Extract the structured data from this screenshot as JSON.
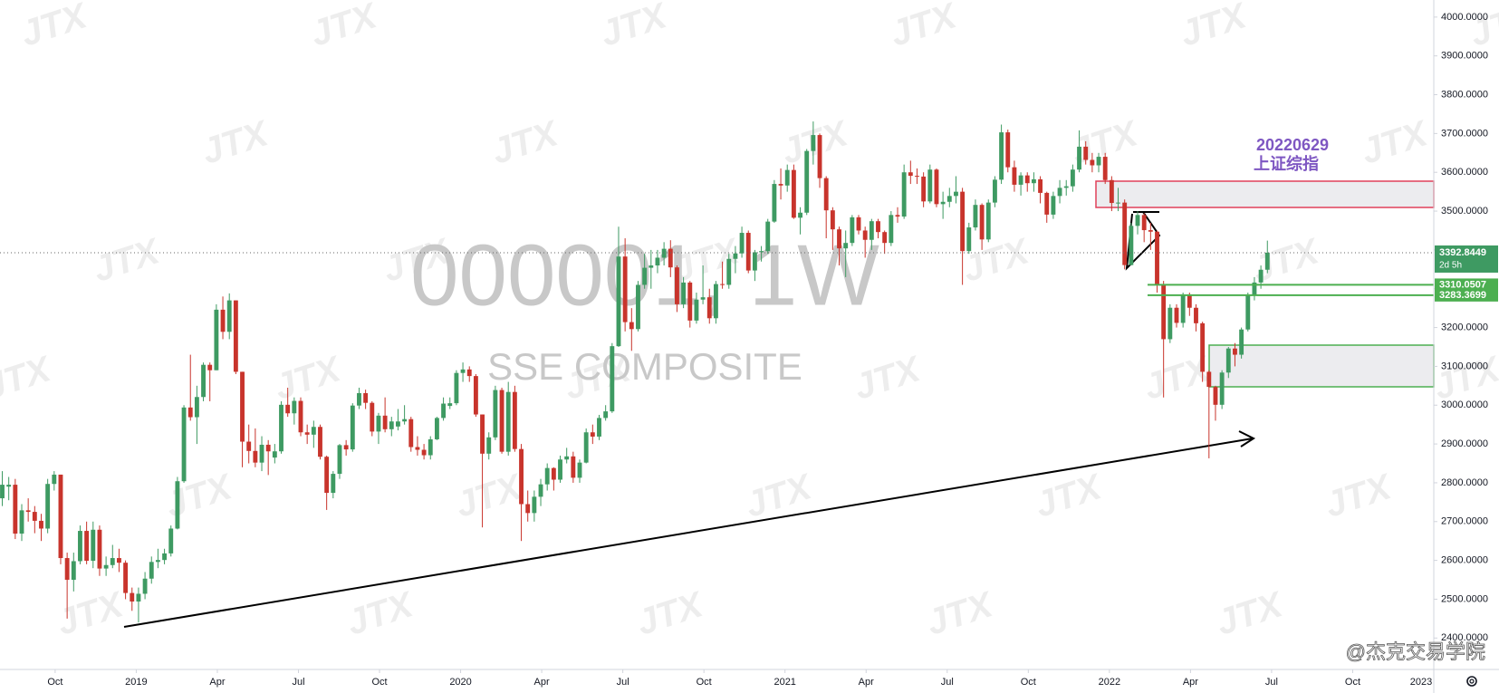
{
  "chart_data": {
    "type": "candlestick",
    "title": "000001, 1W",
    "subtitle": "SSE COMPOSITE",
    "annotations": [
      "20220629",
      "上证综指"
    ],
    "watermark": "JTX",
    "credit": "@杰克交易学院",
    "countdown": "2d 5h",
    "up_color": "#3e9a62",
    "down_color": "#c8342c",
    "level_color": "#4caf50",
    "levels": [
      3310.0507,
      3283.3699
    ],
    "xlim": [
      2018.58,
      2023.0
    ],
    "xticks": [
      {
        "value": 2018.75,
        "label": "Oct"
      },
      2019,
      {
        "value": 2019.25,
        "label": "Apr"
      },
      {
        "value": 2019.5,
        "label": "Jul"
      },
      {
        "value": 2019.75,
        "label": "Oct"
      },
      2020,
      {
        "value": 2020.25,
        "label": "Apr"
      },
      {
        "value": 2020.5,
        "label": "Jul"
      },
      {
        "value": 2020.75,
        "label": "Oct"
      },
      2021,
      {
        "value": 2021.25,
        "label": "Apr"
      },
      {
        "value": 2021.5,
        "label": "Jul"
      },
      {
        "value": 2021.75,
        "label": "Oct"
      },
      2022,
      {
        "value": 2022.25,
        "label": "Apr"
      },
      {
        "value": 2022.5,
        "label": "Jul"
      },
      {
        "value": 2022.75,
        "label": "Oct"
      },
      2023
    ],
    "ylim": [
      2319,
      4044
    ],
    "yticks": [
      {
        "value": 2400,
        "label": "2400.0000"
      },
      {
        "value": 2500,
        "label": "2500.0000"
      },
      {
        "value": 2600,
        "label": "2600.0000"
      },
      {
        "value": 2700,
        "label": "2700.0000"
      },
      {
        "value": 2800,
        "label": "2800.0000"
      },
      {
        "value": 2900,
        "label": "2900.0000"
      },
      {
        "value": 3000,
        "label": "3000.0000"
      },
      {
        "value": 3100,
        "label": "3100.0000"
      },
      {
        "value": 3200,
        "label": "3200.0000"
      },
      {
        "value": 3300,
        "label": "3300.0000"
      },
      {
        "value": 3400,
        "label": "3400.0000"
      },
      {
        "value": 3500,
        "label": "3500.0000"
      },
      {
        "value": 3600,
        "label": "3600.0000"
      },
      {
        "value": 3700,
        "label": "3700.0000"
      },
      {
        "value": 3800,
        "label": "3800.0000"
      },
      {
        "value": 3900,
        "label": "3900.0000"
      },
      {
        "value": 4000,
        "label": "4000.0000"
      }
    ],
    "x": [
      2018.587,
      2018.607,
      2018.627,
      2018.647,
      2018.667,
      2018.687,
      2018.707,
      2018.727,
      2018.747,
      2018.767,
      2018.787,
      2018.807,
      2018.827,
      2018.847,
      2018.867,
      2018.887,
      2018.907,
      2018.927,
      2018.947,
      2018.967,
      2018.987,
      2019.007,
      2019.027,
      2019.047,
      2019.067,
      2019.087,
      2019.107,
      2019.127,
      2019.147,
      2019.167,
      2019.187,
      2019.207,
      2019.227,
      2019.247,
      2019.267,
      2019.287,
      2019.307,
      2019.327,
      2019.347,
      2019.367,
      2019.387,
      2019.407,
      2019.427,
      2019.447,
      2019.467,
      2019.487,
      2019.507,
      2019.527,
      2019.547,
      2019.567,
      2019.587,
      2019.607,
      2019.627,
      2019.647,
      2019.667,
      2019.687,
      2019.707,
      2019.727,
      2019.747,
      2019.767,
      2019.787,
      2019.807,
      2019.827,
      2019.847,
      2019.867,
      2019.887,
      2019.907,
      2019.927,
      2019.947,
      2019.967,
      2019.987,
      2020.007,
      2020.027,
      2020.047,
      2020.067,
      2020.087,
      2020.107,
      2020.127,
      2020.147,
      2020.167,
      2020.187,
      2020.207,
      2020.227,
      2020.247,
      2020.267,
      2020.287,
      2020.307,
      2020.327,
      2020.347,
      2020.367,
      2020.387,
      2020.407,
      2020.427,
      2020.447,
      2020.467,
      2020.487,
      2020.507,
      2020.527,
      2020.547,
      2020.567,
      2020.587,
      2020.607,
      2020.627,
      2020.647,
      2020.667,
      2020.687,
      2020.707,
      2020.727,
      2020.747,
      2020.767,
      2020.787,
      2020.807,
      2020.827,
      2020.847,
      2020.867,
      2020.887,
      2020.907,
      2020.927,
      2020.947,
      2020.967,
      2020.987,
      2021.007,
      2021.027,
      2021.047,
      2021.067,
      2021.087,
      2021.107,
      2021.127,
      2021.147,
      2021.167,
      2021.187,
      2021.207,
      2021.227,
      2021.247,
      2021.267,
      2021.287,
      2021.307,
      2021.327,
      2021.347,
      2021.367,
      2021.387,
      2021.407,
      2021.427,
      2021.447,
      2021.467,
      2021.487,
      2021.507,
      2021.527,
      2021.547,
      2021.567,
      2021.587,
      2021.607,
      2021.627,
      2021.647,
      2021.667,
      2021.687,
      2021.707,
      2021.727,
      2021.747,
      2021.767,
      2021.787,
      2021.807,
      2021.827,
      2021.847,
      2021.867,
      2021.887,
      2021.907,
      2021.927,
      2021.947,
      2021.967,
      2021.987,
      2022.007,
      2022.027,
      2022.047,
      2022.067,
      2022.087,
      2022.107,
      2022.127,
      2022.147,
      2022.167,
      2022.187,
      2022.207,
      2022.227,
      2022.247,
      2022.267,
      2022.287,
      2022.307,
      2022.327,
      2022.347,
      2022.367,
      2022.387,
      2022.407,
      2022.427,
      2022.447,
      2022.467,
      2022.487
    ],
    "ohlc": [
      [
        2760,
        2830,
        2740,
        2795
      ],
      [
        2790,
        2815,
        2755,
        2795
      ],
      [
        2795,
        2810,
        2655,
        2669
      ],
      [
        2669,
        2745,
        2650,
        2729
      ],
      [
        2729,
        2760,
        2700,
        2725
      ],
      [
        2725,
        2740,
        2670,
        2702
      ],
      [
        2702,
        2720,
        2650,
        2682
      ],
      [
        2682,
        2810,
        2670,
        2797
      ],
      [
        2797,
        2830,
        2780,
        2821
      ],
      [
        2821,
        2821,
        2590,
        2606
      ],
      [
        2606,
        2620,
        2450,
        2550
      ],
      [
        2550,
        2620,
        2520,
        2598
      ],
      [
        2598,
        2690,
        2590,
        2676
      ],
      [
        2676,
        2700,
        2590,
        2599
      ],
      [
        2599,
        2700,
        2580,
        2679
      ],
      [
        2679,
        2690,
        2560,
        2579
      ],
      [
        2579,
        2610,
        2560,
        2588
      ],
      [
        2588,
        2640,
        2580,
        2606
      ],
      [
        2606,
        2630,
        2570,
        2594
      ],
      [
        2594,
        2600,
        2500,
        2516
      ],
      [
        2516,
        2530,
        2470,
        2494
      ],
      [
        2494,
        2530,
        2440,
        2514
      ],
      [
        2514,
        2570,
        2500,
        2553
      ],
      [
        2553,
        2610,
        2540,
        2596
      ],
      [
        2596,
        2630,
        2580,
        2601
      ],
      [
        2601,
        2630,
        2590,
        2618
      ],
      [
        2618,
        2690,
        2610,
        2682
      ],
      [
        2682,
        2815,
        2680,
        2804
      ],
      [
        2804,
        3000,
        2800,
        2994
      ],
      [
        2994,
        3130,
        2960,
        2969
      ],
      [
        2969,
        3050,
        2900,
        3021
      ],
      [
        3021,
        3110,
        3010,
        3104
      ],
      [
        3104,
        3110,
        3010,
        3090
      ],
      [
        3090,
        3260,
        3090,
        3246
      ],
      [
        3246,
        3280,
        3170,
        3189
      ],
      [
        3189,
        3288,
        3170,
        3270
      ],
      [
        3270,
        3270,
        3080,
        3086
      ],
      [
        3086,
        3086,
        2840,
        2906
      ],
      [
        2906,
        2950,
        2850,
        2882
      ],
      [
        2882,
        2940,
        2840,
        2852
      ],
      [
        2852,
        2920,
        2830,
        2898
      ],
      [
        2898,
        2910,
        2820,
        2881
      ],
      [
        2865,
        2900,
        2850,
        2881
      ],
      [
        2881,
        3010,
        2875,
        3001
      ],
      [
        3001,
        3045,
        2970,
        2979
      ],
      [
        2979,
        3020,
        2950,
        3011
      ],
      [
        3011,
        3020,
        2920,
        2930
      ],
      [
        2930,
        2950,
        2900,
        2924
      ],
      [
        2924,
        2960,
        2890,
        2944
      ],
      [
        2944,
        2950,
        2860,
        2867
      ],
      [
        2867,
        2870,
        2730,
        2774
      ],
      [
        2774,
        2830,
        2760,
        2823
      ],
      [
        2823,
        2900,
        2810,
        2897
      ],
      [
        2897,
        2910,
        2870,
        2886
      ],
      [
        2886,
        3005,
        2880,
        2999
      ],
      [
        2999,
        3045,
        2990,
        3031
      ],
      [
        3031,
        3040,
        2990,
        3006
      ],
      [
        3006,
        3010,
        2920,
        2932
      ],
      [
        2932,
        2980,
        2900,
        2973
      ],
      [
        2973,
        3020,
        2930,
        2938
      ],
      [
        2938,
        2970,
        2920,
        2958
      ],
      [
        2945,
        2990,
        2935,
        2958
      ],
      [
        2958,
        3000,
        2950,
        2964
      ],
      [
        2964,
        2970,
        2880,
        2892
      ],
      [
        2892,
        2920,
        2870,
        2885
      ],
      [
        2885,
        2900,
        2860,
        2871
      ],
      [
        2871,
        2920,
        2860,
        2912
      ],
      [
        2912,
        2970,
        2910,
        2967
      ],
      [
        2967,
        3020,
        2960,
        3004
      ],
      [
        2998,
        3020,
        2990,
        3005
      ],
      [
        3005,
        3090,
        3000,
        3083
      ],
      [
        3083,
        3110,
        3060,
        3092
      ],
      [
        3092,
        3100,
        3060,
        3075
      ],
      [
        3075,
        3080,
        2970,
        2976
      ],
      [
        2976,
        2976,
        2685,
        2875
      ],
      [
        2875,
        2930,
        2860,
        2917
      ],
      [
        2917,
        3050,
        2910,
        3039
      ],
      [
        3039,
        3045,
        2875,
        2880
      ],
      [
        2880,
        3060,
        2870,
        3034
      ],
      [
        3034,
        3050,
        2880,
        2887
      ],
      [
        2887,
        2900,
        2650,
        2745
      ],
      [
        2745,
        2780,
        2700,
        2722
      ],
      [
        2722,
        2780,
        2700,
        2764
      ],
      [
        2764,
        2810,
        2740,
        2796
      ],
      [
        2796,
        2850,
        2780,
        2838
      ],
      [
        2838,
        2840,
        2780,
        2808
      ],
      [
        2808,
        2870,
        2800,
        2860
      ],
      [
        2860,
        2890,
        2850,
        2868
      ],
      [
        2868,
        2880,
        2800,
        2813
      ],
      [
        2813,
        2860,
        2800,
        2852
      ],
      [
        2852,
        2940,
        2850,
        2930
      ],
      [
        2930,
        2950,
        2900,
        2919
      ],
      [
        2919,
        2975,
        2910,
        2967
      ],
      [
        2967,
        3000,
        2960,
        2984
      ],
      [
        2984,
        3160,
        2980,
        3152
      ],
      [
        3152,
        3460,
        3150,
        3383
      ],
      [
        3383,
        3430,
        3190,
        3214
      ],
      [
        3214,
        3250,
        3140,
        3196
      ],
      [
        3196,
        3320,
        3190,
        3310
      ],
      [
        3310,
        3390,
        3300,
        3354
      ],
      [
        3354,
        3400,
        3300,
        3360
      ],
      [
        3360,
        3400,
        3340,
        3380
      ],
      [
        3380,
        3420,
        3360,
        3403
      ],
      [
        3403,
        3425,
        3330,
        3355
      ],
      [
        3355,
        3360,
        3240,
        3260
      ],
      [
        3260,
        3330,
        3250,
        3316
      ],
      [
        3316,
        3320,
        3200,
        3218
      ],
      [
        3218,
        3290,
        3210,
        3272
      ],
      [
        3272,
        3360,
        3260,
        3278
      ],
      [
        3278,
        3300,
        3210,
        3224
      ],
      [
        3224,
        3320,
        3210,
        3312
      ],
      [
        3312,
        3370,
        3300,
        3310
      ],
      [
        3310,
        3390,
        3300,
        3377
      ],
      [
        3377,
        3410,
        3340,
        3391
      ],
      [
        3391,
        3460,
        3380,
        3444
      ],
      [
        3444,
        3450,
        3340,
        3347
      ],
      [
        3347,
        3400,
        3320,
        3394
      ],
      [
        3394,
        3410,
        3370,
        3397
      ],
      [
        3397,
        3480,
        3390,
        3473
      ],
      [
        3473,
        3580,
        3470,
        3570
      ],
      [
        3570,
        3610,
        3530,
        3566
      ],
      [
        3566,
        3620,
        3550,
        3606
      ],
      [
        3606,
        3620,
        3480,
        3483
      ],
      [
        3483,
        3510,
        3440,
        3496
      ],
      [
        3496,
        3660,
        3490,
        3655
      ],
      [
        3655,
        3731,
        3620,
        3696
      ],
      [
        3696,
        3700,
        3560,
        3585
      ],
      [
        3585,
        3590,
        3430,
        3502
      ],
      [
        3502,
        3510,
        3400,
        3453
      ],
      [
        3453,
        3460,
        3360,
        3404
      ],
      [
        3404,
        3450,
        3330,
        3418
      ],
      [
        3418,
        3490,
        3410,
        3484
      ],
      [
        3484,
        3490,
        3440,
        3450
      ],
      [
        3450,
        3460,
        3380,
        3426
      ],
      [
        3426,
        3480,
        3400,
        3474
      ],
      [
        3474,
        3480,
        3430,
        3446
      ],
      [
        3446,
        3450,
        3390,
        3418
      ],
      [
        3418,
        3500,
        3410,
        3490
      ],
      [
        3490,
        3510,
        3470,
        3486
      ],
      [
        3486,
        3620,
        3480,
        3600
      ],
      [
        3600,
        3630,
        3570,
        3591
      ],
      [
        3591,
        3610,
        3570,
        3589
      ],
      [
        3589,
        3600,
        3510,
        3525
      ],
      [
        3525,
        3620,
        3520,
        3607
      ],
      [
        3607,
        3610,
        3510,
        3518
      ],
      [
        3518,
        3550,
        3480,
        3524
      ],
      [
        3524,
        3560,
        3510,
        3539
      ],
      [
        3539,
        3590,
        3520,
        3550
      ],
      [
        3550,
        3560,
        3310,
        3397
      ],
      [
        3397,
        3470,
        3390,
        3458
      ],
      [
        3458,
        3530,
        3450,
        3516
      ],
      [
        3516,
        3520,
        3400,
        3427
      ],
      [
        3427,
        3530,
        3420,
        3522
      ],
      [
        3522,
        3590,
        3510,
        3581
      ],
      [
        3581,
        3723,
        3570,
        3703
      ],
      [
        3703,
        3710,
        3600,
        3613
      ],
      [
        3613,
        3630,
        3550,
        3568
      ],
      [
        3568,
        3600,
        3540,
        3592
      ],
      [
        3592,
        3600,
        3550,
        3572
      ],
      [
        3572,
        3600,
        3550,
        3582
      ],
      [
        3582,
        3590,
        3520,
        3547
      ],
      [
        3547,
        3550,
        3470,
        3491
      ],
      [
        3491,
        3550,
        3480,
        3539
      ],
      [
        3539,
        3580,
        3520,
        3560
      ],
      [
        3560,
        3580,
        3540,
        3564
      ],
      [
        3564,
        3620,
        3550,
        3607
      ],
      [
        3607,
        3708,
        3600,
        3666
      ],
      [
        3666,
        3680,
        3620,
        3632
      ],
      [
        3632,
        3650,
        3600,
        3618
      ],
      [
        3618,
        3650,
        3600,
        3640
      ],
      [
        3640,
        3650,
        3570,
        3580
      ],
      [
        3580,
        3590,
        3500,
        3521
      ],
      [
        3521,
        3560,
        3500,
        3522
      ],
      [
        3522,
        3530,
        3350,
        3361
      ],
      [
        3361,
        3470,
        3360,
        3462
      ],
      [
        3462,
        3500,
        3440,
        3490
      ],
      [
        3490,
        3495,
        3420,
        3451
      ],
      [
        3451,
        3470,
        3400,
        3447
      ],
      [
        3447,
        3450,
        3290,
        3309
      ],
      [
        3309,
        3320,
        3020,
        3170
      ],
      [
        3170,
        3260,
        3160,
        3251
      ],
      [
        3251,
        3260,
        3200,
        3212
      ],
      [
        3212,
        3290,
        3200,
        3282
      ],
      [
        3282,
        3290,
        3230,
        3251
      ],
      [
        3251,
        3260,
        3190,
        3211
      ],
      [
        3211,
        3215,
        3060,
        3086
      ],
      [
        3086,
        3090,
        2863,
        3047
      ],
      [
        3047,
        3050,
        2960,
        3001
      ],
      [
        3001,
        3090,
        2990,
        3084
      ],
      [
        3084,
        3150,
        3070,
        3146
      ],
      [
        3146,
        3160,
        3100,
        3130
      ],
      [
        3130,
        3200,
        3120,
        3195
      ],
      [
        3195,
        3290,
        3190,
        3284
      ],
      [
        3284,
        3330,
        3270,
        3316
      ],
      [
        3316,
        3360,
        3300,
        3349
      ],
      [
        3349,
        3424,
        3340,
        3392.8449
      ]
    ]
  }
}
